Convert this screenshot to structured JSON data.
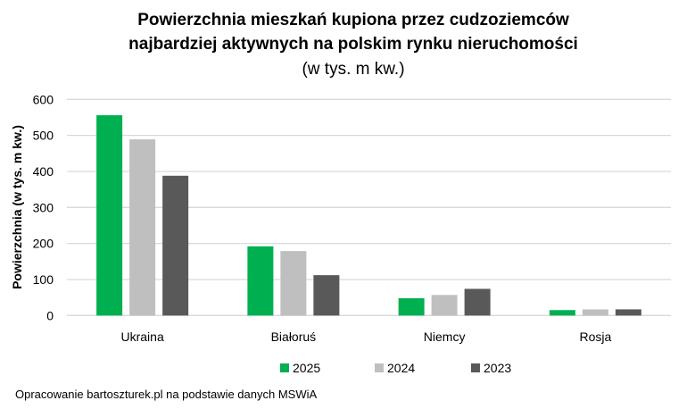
{
  "chart_data": {
    "type": "bar",
    "title_lines": [
      "Powierzchnia mieszkań kupiona przez cudzoziemców",
      "najbardziej aktywnych na polskim rynku nieruchomości"
    ],
    "subtitle": "(w tys. m kw.)",
    "xlabel": "",
    "ylabel": "Powierzchnia (w tys. m kw.)",
    "ylim": [
      0,
      600
    ],
    "yticks": [
      0,
      100,
      200,
      300,
      400,
      500,
      600
    ],
    "grid": true,
    "legend_position": "bottom",
    "categories": [
      "Ukraina",
      "Białoruś",
      "Niemcy",
      "Rosja"
    ],
    "series": [
      {
        "name": "2025",
        "color": "#00B050",
        "values": [
          556,
          192,
          48,
          15
        ]
      },
      {
        "name": "2024",
        "color": "#BFBFBF",
        "values": [
          489,
          179,
          57,
          17
        ]
      },
      {
        "name": "2023",
        "color": "#595959",
        "values": [
          388,
          112,
          74,
          17
        ]
      }
    ],
    "source_note": "Opracowanie bartoszturek.pl na podstawie danych MSWiA"
  }
}
